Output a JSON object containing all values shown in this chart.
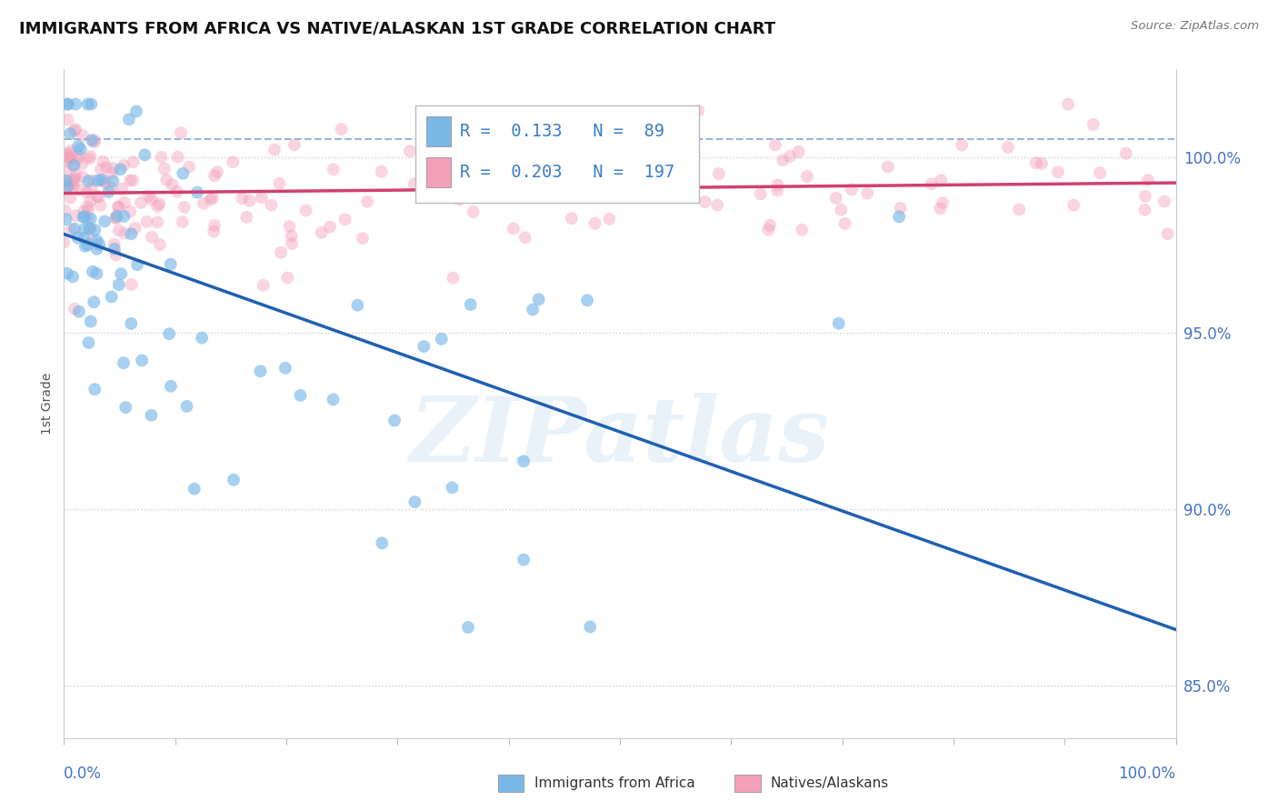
{
  "title": "IMMIGRANTS FROM AFRICA VS NATIVE/ALASKAN 1ST GRADE CORRELATION CHART",
  "source": "Source: ZipAtlas.com",
  "ylabel": "1st Grade",
  "y_ticks": [
    85.0,
    90.0,
    95.0,
    100.0
  ],
  "y_tick_labels": [
    "85.0%",
    "90.0%",
    "95.0%",
    "100.0%"
  ],
  "xlim": [
    0.0,
    100.0
  ],
  "ylim": [
    83.5,
    102.5
  ],
  "blue_R": 0.133,
  "blue_N": 89,
  "pink_R": 0.203,
  "pink_N": 197,
  "blue_color": "#7ab8e8",
  "pink_color": "#f4a0bb",
  "blue_trend_color": "#2060b0",
  "pink_trend_color": "#d04070",
  "blue_marker_alpha": 0.65,
  "pink_marker_alpha": 0.45,
  "legend_label_blue": "Immigrants from Africa",
  "legend_label_pink": "Natives/Alaskans",
  "watermark_text": "ZIPatlas",
  "dashed_line_y": 100.5,
  "marker_size": 100
}
